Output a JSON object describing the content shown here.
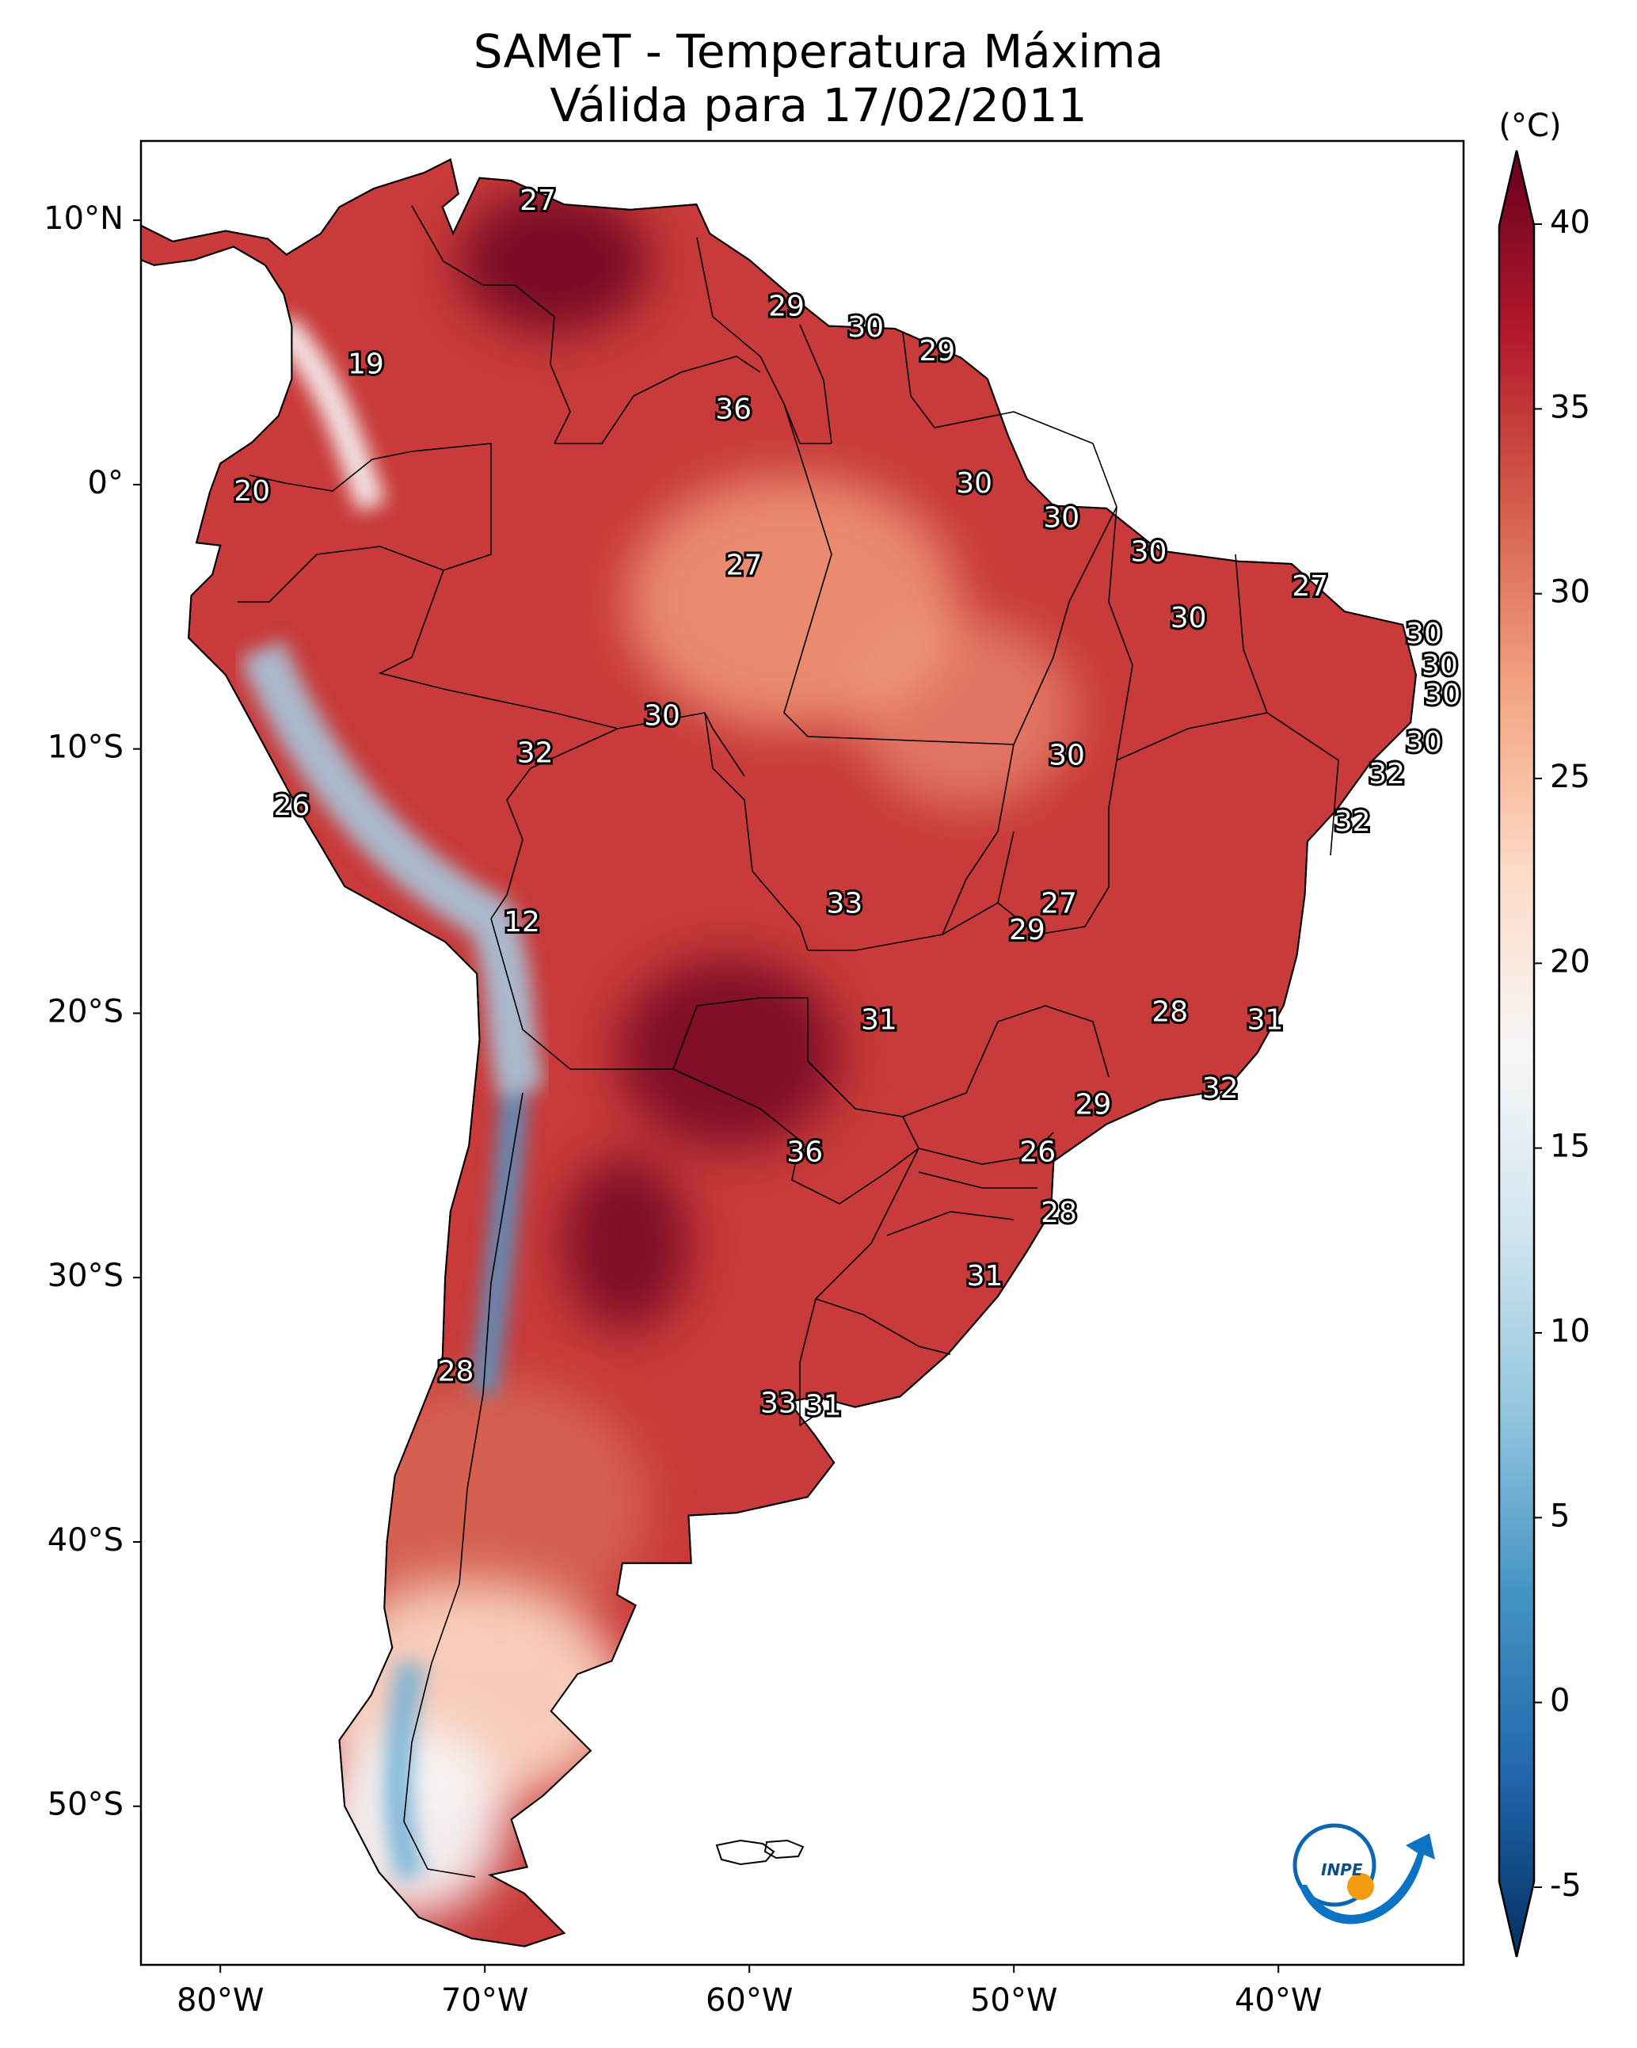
{
  "title_line1": "SAMeT - Temperatura Máxima",
  "title_line2": "Válida para 17/02/2011",
  "colorbar": {
    "unit": "(°C)",
    "ticks": [
      "-5",
      "0",
      "5",
      "10",
      "15",
      "20",
      "25",
      "30",
      "35",
      "40"
    ],
    "palette": [
      "#053061",
      "#2166ac",
      "#4393c3",
      "#92c5de",
      "#d1e5f0",
      "#f7f7f7",
      "#fddbc7",
      "#f4a582",
      "#d6604d",
      "#b2182b",
      "#67001f"
    ]
  },
  "map_axes": {
    "lat_ticks": [
      "10°N",
      "0°",
      "10°S",
      "20°S",
      "30°S",
      "40°S",
      "50°S"
    ],
    "lon_ticks": [
      "80°W",
      "70°W",
      "60°W",
      "50°W",
      "40°W"
    ],
    "extent": {
      "lon": [
        -83,
        -33
      ],
      "lat": [
        -56,
        13
      ]
    }
  },
  "temperature_labels": [
    {
      "value": "27",
      "lon": -68.0,
      "lat": 10.7
    },
    {
      "value": "19",
      "lon": -74.5,
      "lat": 4.5
    },
    {
      "value": "20",
      "lon": -78.8,
      "lat": -0.3
    },
    {
      "value": "29",
      "lon": -58.6,
      "lat": 6.7
    },
    {
      "value": "30",
      "lon": -55.6,
      "lat": 5.9
    },
    {
      "value": "29",
      "lon": -52.9,
      "lat": 5.0
    },
    {
      "value": "36",
      "lon": -60.6,
      "lat": 2.8
    },
    {
      "value": "30",
      "lon": -51.5,
      "lat": 0.0
    },
    {
      "value": "30",
      "lon": -48.2,
      "lat": -1.3
    },
    {
      "value": "30",
      "lon": -44.9,
      "lat": -2.6
    },
    {
      "value": "27",
      "lon": -60.2,
      "lat": -3.1
    },
    {
      "value": "27",
      "lon": -38.8,
      "lat": -3.9
    },
    {
      "value": "30",
      "lon": -43.4,
      "lat": -5.1
    },
    {
      "value": "30",
      "lon": -34.5,
      "lat": -5.7
    },
    {
      "value": "30",
      "lon": -33.9,
      "lat": -6.9
    },
    {
      "value": "30",
      "lon": -33.8,
      "lat": -8.0
    },
    {
      "value": "30",
      "lon": -63.3,
      "lat": -8.8
    },
    {
      "value": "32",
      "lon": -68.1,
      "lat": -10.2
    },
    {
      "value": "30",
      "lon": -34.5,
      "lat": -9.8
    },
    {
      "value": "30",
      "lon": -48.0,
      "lat": -10.3
    },
    {
      "value": "32",
      "lon": -35.9,
      "lat": -11.0
    },
    {
      "value": "26",
      "lon": -77.3,
      "lat": -12.2
    },
    {
      "value": "32",
      "lon": -37.2,
      "lat": -12.8
    },
    {
      "value": "33",
      "lon": -56.4,
      "lat": -15.9
    },
    {
      "value": "27",
      "lon": -48.3,
      "lat": -15.9
    },
    {
      "value": "29",
      "lon": -49.5,
      "lat": -16.9
    },
    {
      "value": "12",
      "lon": -68.6,
      "lat": -16.6
    },
    {
      "value": "28",
      "lon": -44.1,
      "lat": -20.0
    },
    {
      "value": "31",
      "lon": -55.1,
      "lat": -20.3
    },
    {
      "value": "31",
      "lon": -40.5,
      "lat": -20.3
    },
    {
      "value": "32",
      "lon": -42.2,
      "lat": -22.9
    },
    {
      "value": "29",
      "lon": -47.0,
      "lat": -23.5
    },
    {
      "value": "36",
      "lon": -57.9,
      "lat": -25.3
    },
    {
      "value": "26",
      "lon": -49.1,
      "lat": -25.3
    },
    {
      "value": "28",
      "lon": -48.3,
      "lat": -27.6
    },
    {
      "value": "31",
      "lon": -51.1,
      "lat": -30.0
    },
    {
      "value": "28",
      "lon": -71.1,
      "lat": -33.6
    },
    {
      "value": "33",
      "lon": -58.9,
      "lat": -34.8
    },
    {
      "value": "31",
      "lon": -57.2,
      "lat": -34.9
    }
  ],
  "logo_text": "INPE"
}
